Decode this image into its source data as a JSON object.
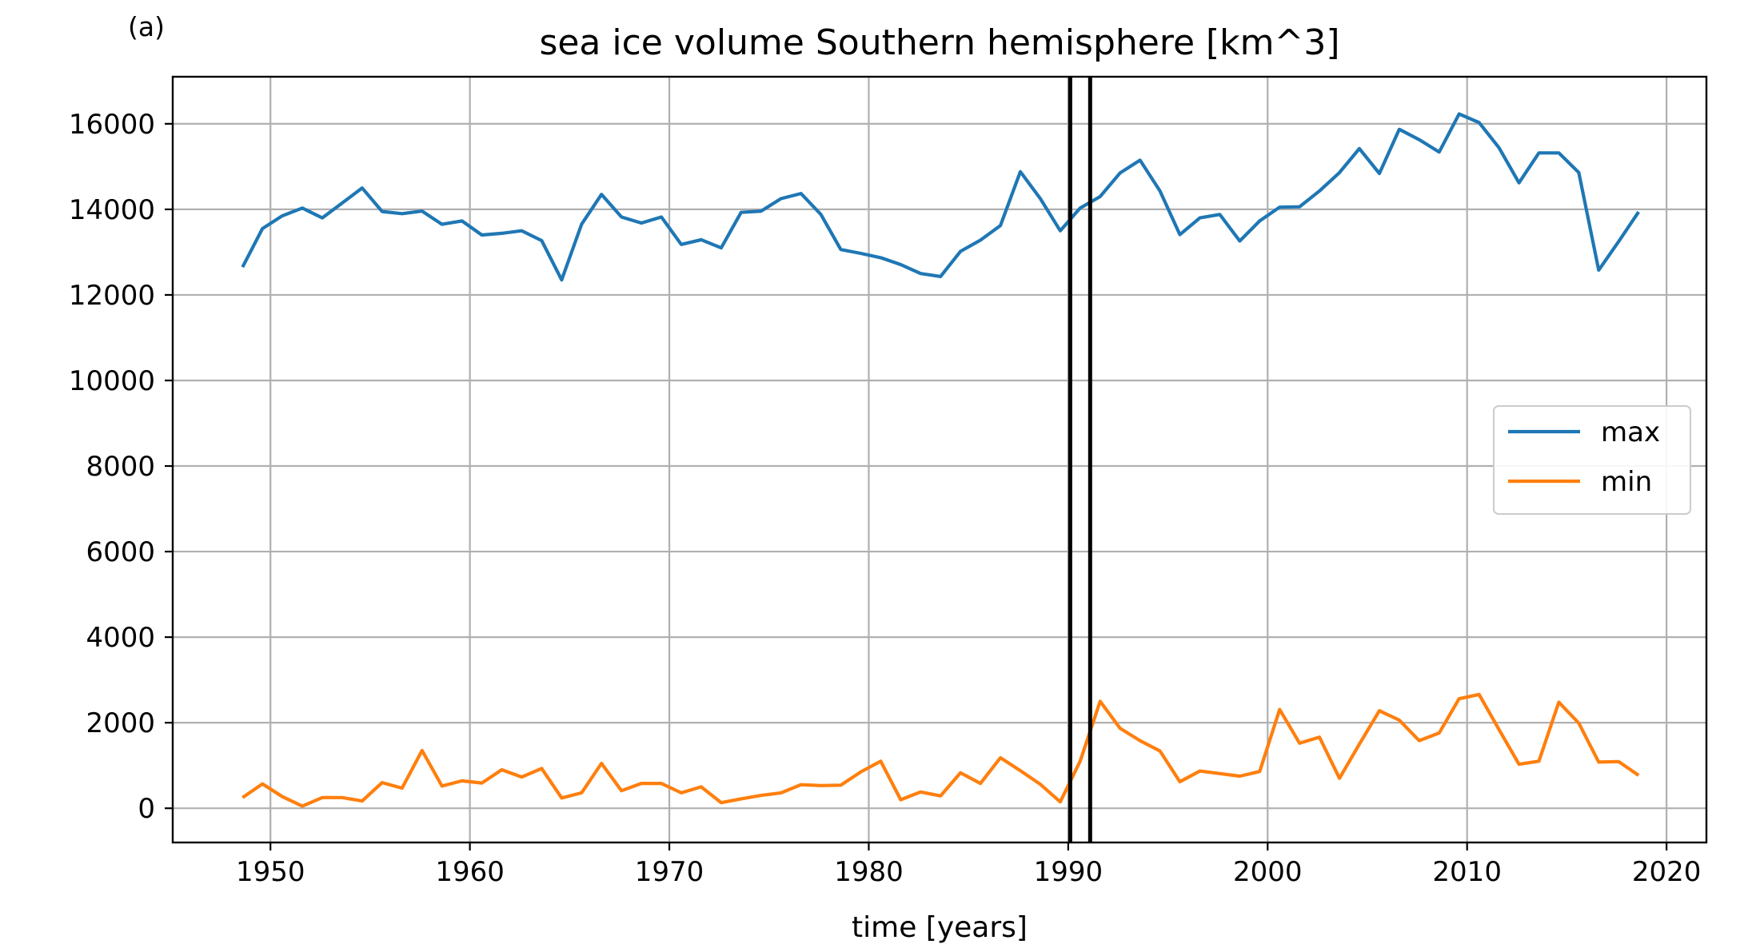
{
  "chart_data": {
    "type": "line",
    "panel_label": "(a)",
    "title": "sea ice volume Southern hemisphere [km^3]",
    "xlabel": "time [years]",
    "ylabel": "",
    "xlim": [
      1945.1,
      2022.0
    ],
    "ylim": [
      -800,
      17100
    ],
    "xticks": [
      1950,
      1960,
      1970,
      1980,
      1990,
      2000,
      2010,
      2020
    ],
    "yticks": [
      0,
      2000,
      4000,
      6000,
      8000,
      10000,
      12000,
      14000,
      16000
    ],
    "grid": true,
    "legend_position": "center-right",
    "vertical_lines": [
      1990.1,
      1991.1
    ],
    "x": [
      1948.6,
      1949.6,
      1950.6,
      1951.6,
      1952.6,
      1953.6,
      1954.6,
      1955.6,
      1956.6,
      1957.6,
      1958.6,
      1959.6,
      1960.6,
      1961.6,
      1962.6,
      1963.6,
      1964.6,
      1965.6,
      1966.6,
      1967.6,
      1968.6,
      1969.6,
      1970.6,
      1971.6,
      1972.6,
      1973.6,
      1974.6,
      1975.6,
      1976.6,
      1977.6,
      1978.6,
      1979.6,
      1980.6,
      1981.6,
      1982.6,
      1983.6,
      1984.6,
      1985.6,
      1986.6,
      1987.6,
      1988.6,
      1989.6,
      1990.6,
      1991.6,
      1992.6,
      1993.6,
      1994.6,
      1995.6,
      1996.6,
      1997.6,
      1998.6,
      1999.6,
      2000.6,
      2001.6,
      2002.6,
      2003.6,
      2004.6,
      2005.6,
      2006.6,
      2007.6,
      2008.6,
      2009.6,
      2010.6,
      2011.6,
      2012.6,
      2013.6,
      2014.6,
      2015.6,
      2016.6,
      2017.6,
      2018.6
    ],
    "series": [
      {
        "name": "max",
        "color": "#1f77b4",
        "values": [
          12650,
          13550,
          13850,
          14030,
          13800,
          14150,
          14500,
          13950,
          13900,
          13960,
          13650,
          13730,
          13400,
          13440,
          13500,
          13270,
          12350,
          13650,
          14350,
          13820,
          13680,
          13820,
          13180,
          13290,
          13100,
          13930,
          13960,
          14250,
          14370,
          13880,
          13060,
          12970,
          12870,
          12710,
          12500,
          12430,
          13020,
          13280,
          13620,
          14880,
          14250,
          13500,
          14030,
          14300,
          14850,
          15150,
          14430,
          13410,
          13800,
          13880,
          13260,
          13730,
          14050,
          14060,
          14430,
          14860,
          15420,
          14840,
          15870,
          15630,
          15340,
          16230,
          16030,
          15440,
          14620,
          15320,
          15320,
          14860,
          12580,
          13250,
          13940
        ]
      },
      {
        "name": "min",
        "color": "#ff7f0e",
        "values": [
          250,
          570,
          270,
          50,
          250,
          250,
          170,
          600,
          470,
          1350,
          520,
          640,
          590,
          900,
          730,
          930,
          240,
          360,
          1050,
          410,
          580,
          580,
          360,
          500,
          130,
          220,
          300,
          360,
          550,
          530,
          540,
          850,
          1100,
          200,
          380,
          290,
          830,
          580,
          1180,
          880,
          560,
          150,
          1100,
          2500,
          1870,
          1580,
          1340,
          620,
          870,
          810,
          750,
          860,
          2310,
          1520,
          1660,
          700,
          1500,
          2280,
          2060,
          1580,
          1760,
          2560,
          2660,
          1840,
          1030,
          1100,
          2480,
          1990,
          1080,
          1090,
          770
        ]
      }
    ]
  }
}
